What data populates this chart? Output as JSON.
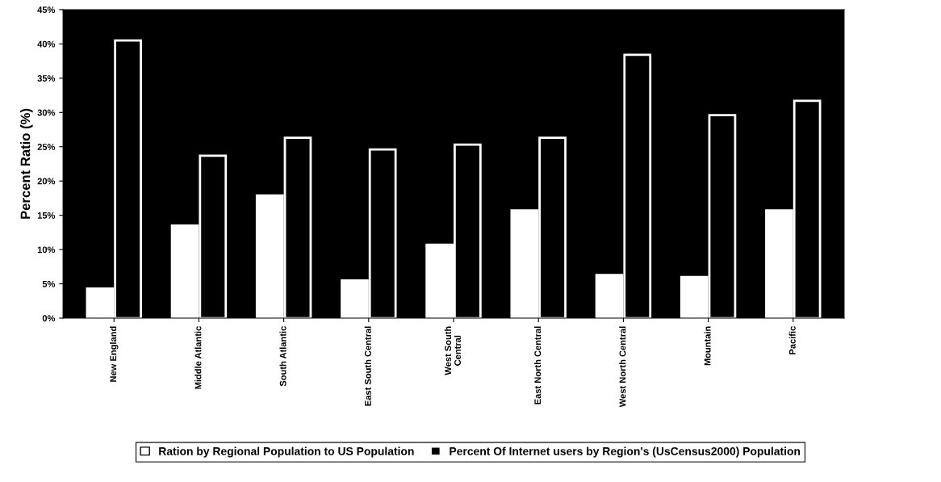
{
  "chart_data": {
    "type": "bar",
    "ylabel": "Percent Ratio (%)",
    "categories": [
      "New England",
      "Middle Atlantic",
      "South Atlantic",
      "East South Central",
      "West South\nCentral",
      "East North Central",
      "West North Central",
      "Mountain",
      "Pacific"
    ],
    "series": [
      {
        "name": "Ration by Regional Population to US Population",
        "color": "#ffffff",
        "values": [
          4.3,
          13.5,
          17.9,
          5.5,
          10.7,
          15.7,
          6.3,
          6.0,
          15.7
        ]
      },
      {
        "name": "Percent Of Internet users by Region's (UsCensus2000) Population",
        "color": "#000000",
        "values": [
          40.5,
          23.7,
          26.3,
          24.6,
          25.3,
          26.3,
          38.4,
          29.6,
          31.7
        ]
      }
    ],
    "ylim": [
      0,
      45
    ],
    "yticks": [
      {
        "value": 0,
        "label": "0%"
      },
      {
        "value": 5,
        "label": "5%"
      },
      {
        "value": 10,
        "label": "10%"
      },
      {
        "value": 15,
        "label": "15%"
      },
      {
        "value": 20,
        "label": "20%"
      },
      {
        "value": 25,
        "label": "25%"
      },
      {
        "value": 30,
        "label": "30%"
      },
      {
        "value": 35,
        "label": "35%"
      },
      {
        "value": 40,
        "label": "40%"
      },
      {
        "value": 45,
        "label": "45%"
      }
    ],
    "grid": false,
    "legend": "bottom"
  }
}
